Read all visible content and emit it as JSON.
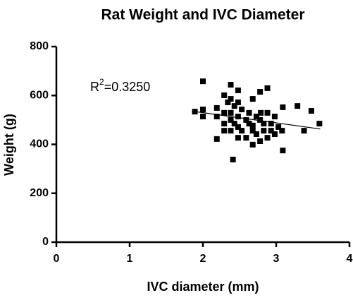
{
  "chart_data": {
    "type": "scatter",
    "title": "Rat Weight and IVC Diameter",
    "x_label": "IVC diameter (mm)",
    "y_label": "Weight (g)",
    "annotation": [
      "R",
      "2",
      "=0.3250"
    ],
    "color": "#000000",
    "x": [
      1.89,
      2.0,
      2.0,
      2.0,
      2.19,
      2.19,
      2.19,
      2.29,
      2.29,
      2.29,
      2.29,
      2.34,
      2.38,
      2.38,
      2.38,
      2.38,
      2.38,
      2.43,
      2.43,
      2.48,
      2.48,
      2.48,
      2.48,
      2.48,
      2.53,
      2.53,
      2.59,
      2.59,
      2.63,
      2.63,
      2.68,
      2.68,
      2.68,
      2.68,
      2.73,
      2.73,
      2.78,
      2.78,
      2.78,
      2.79,
      2.83,
      2.83,
      2.88,
      2.88,
      2.88,
      2.93,
      2.93,
      2.98,
      2.98,
      3.03,
      3.08,
      3.09,
      3.09,
      3.29,
      3.38,
      3.48,
      3.59,
      2.41
    ],
    "y": [
      534,
      543,
      658,
      514,
      422,
      514,
      549,
      601,
      529,
      485,
      456,
      572,
      644,
      586,
      529,
      500,
      456,
      557,
      485,
      621,
      572,
      514,
      471,
      427,
      456,
      543,
      500,
      427,
      485,
      529,
      586,
      456,
      399,
      477,
      514,
      442,
      500,
      615,
      413,
      529,
      456,
      485,
      630,
      529,
      427,
      485,
      456,
      514,
      442,
      471,
      456,
      552,
      375,
      557,
      456,
      537,
      485,
      338
    ],
    "trendline": {
      "x": [
        1.9,
        3.6
      ],
      "y": [
        534,
        463
      ]
    },
    "xlim": [
      0,
      4
    ],
    "xticks": [
      0,
      1,
      2,
      3,
      4
    ],
    "ylim": [
      0,
      800
    ],
    "yticks": [
      0,
      200,
      400,
      600,
      800
    ]
  }
}
